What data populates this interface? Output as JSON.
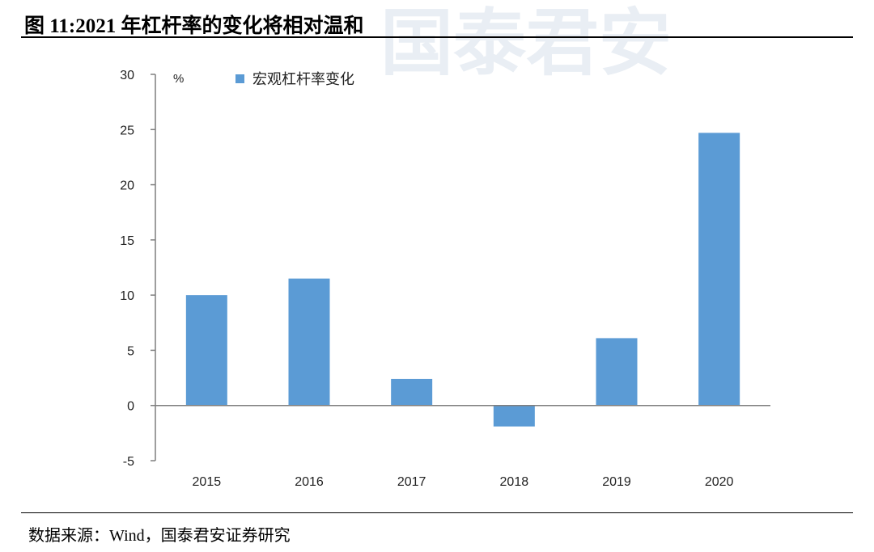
{
  "header": {
    "title": "图 11:2021 年杠杆率的变化将相对温和"
  },
  "footer": {
    "source": "数据来源：Wind，国泰君安证券研究"
  },
  "colors": {
    "bar": "#5b9bd5",
    "axis": "#7f7f7f",
    "text": "#222222"
  },
  "chart_data": {
    "type": "bar",
    "categories": [
      "2015",
      "2016",
      "2017",
      "2018",
      "2019",
      "2020"
    ],
    "series": [
      {
        "name": "宏观杠杆率变化",
        "values": [
          10.0,
          11.5,
          2.4,
          -1.9,
          6.1,
          24.7
        ]
      }
    ],
    "y_unit": "%",
    "ylim": [
      -5,
      30
    ],
    "yticks": [
      -5,
      0,
      5,
      10,
      15,
      20,
      25,
      30
    ],
    "legend": "top",
    "grid": false
  }
}
